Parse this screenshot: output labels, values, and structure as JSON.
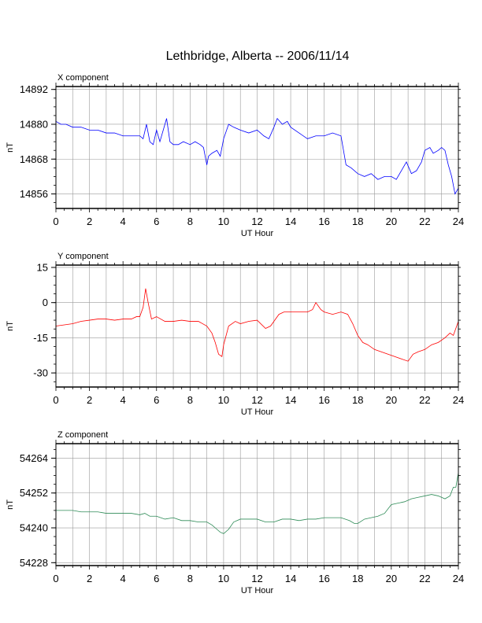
{
  "page_title": "Lethbridge, Alberta -- 2006/11/14",
  "chart_data": [
    {
      "type": "line",
      "title": "X component",
      "xlabel": "UT Hour",
      "ylabel": "nT",
      "xlim": [
        0,
        24
      ],
      "ylim": [
        14851,
        14893
      ],
      "xticks": [
        0,
        2,
        4,
        6,
        8,
        10,
        12,
        14,
        16,
        18,
        20,
        22,
        24
      ],
      "yticks": [
        14856,
        14868,
        14880,
        14892
      ],
      "grid": true,
      "color": "#0000ff",
      "series": [
        {
          "x": [
            0,
            0.3,
            0.6,
            1,
            1.5,
            2,
            2.5,
            3,
            3.5,
            4,
            4.5,
            5,
            5.2,
            5.4,
            5.6,
            5.8,
            6.0,
            6.2,
            6.4,
            6.6,
            6.8,
            7.0,
            7.3,
            7.6,
            8.0,
            8.3,
            8.6,
            8.8,
            9.0,
            9.1,
            9.3,
            9.6,
            9.8,
            10.0,
            10.3,
            10.6,
            11.0,
            11.5,
            12.0,
            12.4,
            12.7,
            13.0,
            13.2,
            13.5,
            13.8,
            14.0,
            14.5,
            15.0,
            15.5,
            16.0,
            16.5,
            17.0,
            17.3,
            17.6,
            18.0,
            18.4,
            18.8,
            19.2,
            19.6,
            20.0,
            20.3,
            20.6,
            20.9,
            21.2,
            21.5,
            21.8,
            22.0,
            22.3,
            22.5,
            22.8,
            23.0,
            23.2,
            23.4,
            23.6,
            23.8,
            24.0
          ],
          "y": [
            14881,
            14880,
            14880,
            14879,
            14879,
            14878,
            14878,
            14877,
            14877,
            14876,
            14876,
            14876,
            14875,
            14880,
            14874,
            14873,
            14878,
            14874,
            14878,
            14882,
            14874,
            14873,
            14873,
            14874,
            14873,
            14874,
            14873,
            14872,
            14866,
            14869,
            14870,
            14871,
            14869,
            14875,
            14880,
            14879,
            14878,
            14877,
            14878,
            14876,
            14875,
            14879,
            14882,
            14880,
            14881,
            14879,
            14877,
            14875,
            14876,
            14876,
            14877,
            14876,
            14866,
            14865,
            14863,
            14862,
            14863,
            14861,
            14862,
            14862,
            14861,
            14864,
            14867,
            14863,
            14864,
            14867,
            14871,
            14872,
            14870,
            14871,
            14872,
            14871,
            14866,
            14862,
            14856,
            14858
          ]
        }
      ]
    },
    {
      "type": "line",
      "title": "Y component",
      "xlabel": "UT Hour",
      "ylabel": "nT",
      "xlim": [
        0,
        24
      ],
      "ylim": [
        -36,
        16
      ],
      "xticks": [
        0,
        2,
        4,
        6,
        8,
        10,
        12,
        14,
        16,
        18,
        20,
        22,
        24
      ],
      "yticks": [
        15,
        0,
        -15,
        -30
      ],
      "grid": true,
      "color": "#ff0000",
      "series": [
        {
          "x": [
            0,
            0.5,
            1,
            1.5,
            2,
            2.5,
            3,
            3.5,
            4,
            4.5,
            4.8,
            5.0,
            5.2,
            5.35,
            5.5,
            5.7,
            6.0,
            6.5,
            7.0,
            7.5,
            8.0,
            8.5,
            9.0,
            9.3,
            9.5,
            9.7,
            9.9,
            10.0,
            10.3,
            10.7,
            11.0,
            11.5,
            12.0,
            12.5,
            12.8,
            13.0,
            13.3,
            13.6,
            14.0,
            14.5,
            15.0,
            15.3,
            15.5,
            15.8,
            16.0,
            16.5,
            17.0,
            17.4,
            17.7,
            18.0,
            18.3,
            18.6,
            19.0,
            19.4,
            19.8,
            20.2,
            20.6,
            21.0,
            21.3,
            21.6,
            22.0,
            22.4,
            22.8,
            23.2,
            23.5,
            23.7,
            24.0
          ],
          "y": [
            -10,
            -9.5,
            -9,
            -8,
            -7.5,
            -7,
            -7,
            -7.5,
            -7,
            -7,
            -6,
            -6,
            -2,
            6,
            0,
            -7,
            -6,
            -8,
            -8,
            -7.5,
            -8,
            -8,
            -10,
            -13,
            -17,
            -22,
            -23,
            -18,
            -10,
            -8,
            -9,
            -8,
            -7.5,
            -11,
            -10,
            -8,
            -5,
            -4,
            -4,
            -4,
            -4,
            -3,
            0,
            -3,
            -4,
            -5,
            -4,
            -5,
            -9,
            -14,
            -17,
            -18,
            -20,
            -21,
            -22,
            -23,
            -24,
            -25,
            -22,
            -21,
            -20,
            -18,
            -17,
            -15,
            -13,
            -14,
            -8
          ]
        }
      ]
    },
    {
      "type": "line",
      "title": "Z component",
      "xlabel": "UT Hour",
      "ylabel": "nT",
      "xlim": [
        0,
        24
      ],
      "ylim": [
        54227,
        54269
      ],
      "xticks": [
        0,
        2,
        4,
        6,
        8,
        10,
        12,
        14,
        16,
        18,
        20,
        22,
        24
      ],
      "yticks": [
        54264,
        54252,
        54240,
        54228
      ],
      "grid": true,
      "color": "#2e8b57",
      "series": [
        {
          "x": [
            0,
            0.5,
            1,
            1.5,
            2,
            2.5,
            3,
            3.5,
            4,
            4.5,
            5.0,
            5.3,
            5.6,
            6.0,
            6.5,
            7.0,
            7.5,
            8.0,
            8.5,
            9.0,
            9.3,
            9.6,
            9.8,
            10.0,
            10.3,
            10.6,
            11.0,
            11.5,
            12.0,
            12.5,
            13.0,
            13.5,
            14.0,
            14.5,
            15.0,
            15.5,
            16.0,
            16.5,
            17.0,
            17.5,
            17.8,
            18.0,
            18.4,
            18.8,
            19.2,
            19.6,
            20.0,
            20.4,
            20.8,
            21.2,
            21.6,
            22.0,
            22.4,
            22.8,
            23.2,
            23.5,
            23.7,
            23.85,
            24.0
          ],
          "y": [
            54246,
            54246,
            54246,
            54245.5,
            54245.5,
            54245.5,
            54245,
            54245,
            54245,
            54245,
            54244.5,
            54245,
            54244,
            54244,
            54243,
            54243.5,
            54242.5,
            54242.5,
            54242,
            54242,
            54241,
            54239.5,
            54238.5,
            54238,
            54239.5,
            54242,
            54243,
            54243,
            54243,
            54242,
            54242,
            54243,
            54243,
            54242.5,
            54243,
            54243,
            54243.5,
            54243.5,
            54243.5,
            54242.5,
            54241.5,
            54241.5,
            54243,
            54243.5,
            54244,
            54245,
            54248,
            54248.5,
            54249,
            54250,
            54250.5,
            54251,
            54251.5,
            54251,
            54250,
            54251,
            54254,
            54254,
            54259
          ]
        }
      ]
    }
  ]
}
